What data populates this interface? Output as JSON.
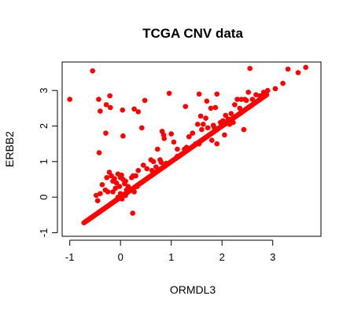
{
  "chart_data": {
    "type": "scatter",
    "title": "TCGA CNV data",
    "xlabel": "ORMDL3",
    "ylabel": "ERBB2",
    "xlim": [
      -1.15,
      3.95
    ],
    "ylim": [
      -1.1,
      3.8
    ],
    "xticks": [
      -1,
      0,
      1,
      2,
      3
    ],
    "yticks": [
      -1,
      0,
      1,
      2,
      3
    ],
    "xtick_labels": [
      "-1",
      "0",
      "1",
      "2",
      "3"
    ],
    "ytick_labels": [
      "-1",
      "0",
      "1",
      "2",
      "3"
    ],
    "grid": false,
    "point_color": "#ff0000",
    "series": [
      {
        "x": [
          -1.0,
          -0.55,
          -0.43,
          -0.21,
          -0.4,
          -0.28,
          -0.2,
          0.04,
          -0.42,
          -0.29,
          0.27,
          0.48,
          0.35,
          0.96,
          0.42,
          0.05,
          0.24,
          0.6,
          0.73,
          0.82,
          0.85,
          0.86,
          1.0,
          1.05,
          1.28,
          1.35,
          1.42,
          1.45,
          1.52,
          1.55,
          1.58,
          1.63,
          1.68,
          1.7,
          1.78,
          1.83,
          1.87,
          1.9,
          1.97,
          2.02,
          2.07,
          2.12,
          2.18,
          2.22,
          2.25,
          2.3,
          2.35,
          2.38,
          2.43,
          2.45,
          2.48,
          2.52,
          2.55,
          2.6,
          2.67,
          2.75,
          2.82,
          2.9,
          3.05,
          3.2,
          3.3,
          3.5,
          3.65,
          1.6,
          1.8,
          2.05,
          2.45,
          2.15,
          1.9,
          1.12,
          1.26,
          1.48,
          1.72,
          -0.36,
          -0.3,
          -0.27,
          -0.22,
          -0.18,
          -0.15,
          -0.12,
          -0.08,
          -0.05,
          -0.02,
          0.0,
          0.02,
          0.05,
          0.08,
          0.1,
          -0.25,
          -0.1,
          0.06,
          0.12,
          0.22,
          0.3,
          0.35,
          -0.48,
          -0.45,
          -0.4,
          -0.15,
          0.0,
          0.1,
          0.27,
          0.33,
          0.45,
          0.65,
          0.78,
          0.9,
          1.12,
          0.03,
          -0.05,
          0.15,
          0.25,
          0.52,
          0.62,
          0.7,
          0.8,
          1.3,
          1.55,
          1.85
        ],
        "y": [
          2.75,
          3.55,
          2.75,
          2.85,
          2.42,
          2.6,
          2.52,
          2.45,
          1.25,
          1.8,
          2.48,
          2.72,
          2.4,
          2.92,
          1.95,
          1.72,
          -0.45,
          1.05,
          1.35,
          1.85,
          1.75,
          1.65,
          1.78,
          1.55,
          2.55,
          1.7,
          1.8,
          1.45,
          2.05,
          2.9,
          2.28,
          2.05,
          2.22,
          2.7,
          2.5,
          2.02,
          2.52,
          2.9,
          2.1,
          2.15,
          2.3,
          2.2,
          2.35,
          2.1,
          2.6,
          2.75,
          2.5,
          2.75,
          1.9,
          2.75,
          2.72,
          2.95,
          3.62,
          2.75,
          2.88,
          2.85,
          2.95,
          3.0,
          3.05,
          3.2,
          3.6,
          3.5,
          3.65,
          1.9,
          1.6,
          1.75,
          2.45,
          2.05,
          1.5,
          1.15,
          1.35,
          1.5,
          1.95,
          0.35,
          0.2,
          0.55,
          0.7,
          0.6,
          0.45,
          0.52,
          0.4,
          0.65,
          0.3,
          0.55,
          0.62,
          0.5,
          0.38,
          0.45,
          0.15,
          0.25,
          0.05,
          0.2,
          0.55,
          0.6,
          0.75,
          0.05,
          -0.1,
          0.1,
          0.15,
          0.1,
          0.05,
          0.15,
          0.3,
          0.9,
          1.0,
          1.05,
          0.95,
          1.35,
          -0.05,
          0.0,
          0.3,
          0.6,
          0.8,
          0.75,
          0.85,
          0.98,
          1.4,
          1.5,
          1.95
        ],
        "diagonal_cluster": {
          "x_from": -0.72,
          "x_to": 2.88,
          "intercept": 0.0,
          "slope": 1.0
        }
      }
    ]
  }
}
